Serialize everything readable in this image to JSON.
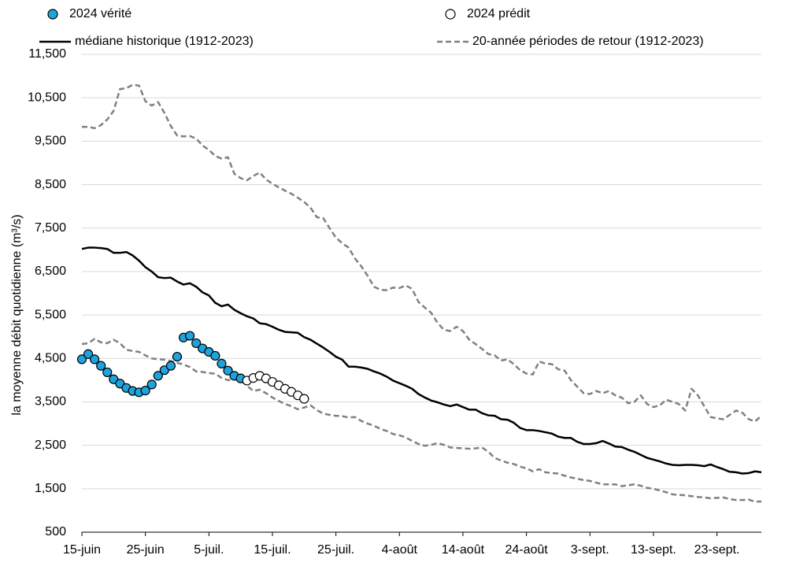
{
  "chart_data": {
    "type": "line",
    "y_label": "la moyenne débit quotidienne (m³/s)",
    "categories": [
      "15-juin",
      null,
      null,
      null,
      null,
      null,
      null,
      null,
      null,
      null,
      "25-juin",
      null,
      null,
      null,
      null,
      null,
      null,
      null,
      null,
      null,
      "5-juil.",
      null,
      null,
      null,
      null,
      null,
      null,
      null,
      null,
      null,
      "15-juil.",
      null,
      null,
      null,
      null,
      null,
      null,
      null,
      null,
      null,
      "25-juil.",
      null,
      null,
      null,
      null,
      null,
      null,
      null,
      null,
      null,
      "4-août",
      null,
      null,
      null,
      null,
      null,
      null,
      null,
      null,
      null,
      "14-août",
      null,
      null,
      null,
      null,
      null,
      null,
      null,
      null,
      null,
      "24-août",
      null,
      null,
      null,
      null,
      null,
      null,
      null,
      null,
      null,
      "3-sept.",
      null,
      null,
      null,
      null,
      null,
      null,
      null,
      null,
      null,
      "13-sept.",
      null,
      null,
      null,
      null,
      null,
      null,
      null,
      null,
      null,
      "23-sept.",
      null,
      null,
      null,
      null,
      null,
      null,
      null
    ],
    "ylim": [
      500,
      11500
    ],
    "yticks": [
      500,
      {
        "value": 1500,
        "label": "1,500"
      },
      {
        "value": 2500,
        "label": "2,500"
      },
      {
        "value": 3500,
        "label": "3,500"
      },
      {
        "value": 4500,
        "label": "4,500"
      },
      {
        "value": 5500,
        "label": "5,500"
      },
      {
        "value": 6500,
        "label": "6,500"
      },
      {
        "value": 7500,
        "label": "7,500"
      },
      {
        "value": 8500,
        "label": "8,500"
      },
      {
        "value": 9500,
        "label": "9,500"
      },
      {
        "value": 10500,
        "label": "10,500"
      },
      {
        "value": 11500,
        "label": "11,500"
      }
    ],
    "grid": true,
    "series": [
      {
        "name": "2024 vérité",
        "color": "#1fa3dc",
        "marker": true,
        "values": [
          4480,
          4600,
          4480,
          4330,
          4180,
          4020,
          3920,
          3820,
          3750,
          3720,
          3760,
          3900,
          4100,
          4230,
          4330,
          4540,
          4980,
          5020,
          4850,
          4730,
          4650,
          4560,
          4380,
          4220,
          4100,
          4040,
          null,
          null,
          null,
          null,
          null,
          null,
          null,
          null,
          null,
          null,
          null,
          null,
          null,
          null,
          null,
          null,
          null,
          null,
          null,
          null,
          null,
          null,
          null,
          null,
          null,
          null,
          null,
          null,
          null,
          null,
          null,
          null,
          null,
          null,
          null,
          null,
          null,
          null,
          null,
          null,
          null,
          null,
          null,
          null,
          null,
          null,
          null,
          null,
          null,
          null,
          null,
          null,
          null,
          null,
          null,
          null,
          null,
          null,
          null,
          null,
          null,
          null,
          null,
          null,
          null,
          null,
          null,
          null,
          null,
          null,
          null,
          null,
          null,
          null,
          null,
          null,
          null,
          null,
          null,
          null,
          null,
          null
        ]
      },
      {
        "name": "2024 prédit",
        "color": "#ffffff",
        "marker": true,
        "values": [
          null,
          null,
          null,
          null,
          null,
          null,
          null,
          null,
          null,
          null,
          null,
          null,
          null,
          null,
          null,
          null,
          null,
          null,
          null,
          null,
          null,
          null,
          null,
          null,
          null,
          null,
          3990,
          4050,
          4100,
          4040,
          3960,
          3880,
          3800,
          3730,
          3650,
          3570,
          null,
          null,
          null,
          null,
          null,
          null,
          null,
          null,
          null,
          null,
          null,
          null,
          null,
          null,
          null,
          null,
          null,
          null,
          null,
          null,
          null,
          null,
          null,
          null,
          null,
          null,
          null,
          null,
          null,
          null,
          null,
          null,
          null,
          null,
          null,
          null,
          null,
          null,
          null,
          null,
          null,
          null,
          null,
          null,
          null,
          null,
          null,
          null,
          null,
          null,
          null,
          null,
          null,
          null,
          null,
          null,
          null,
          null,
          null,
          null,
          null,
          null,
          null,
          null,
          null,
          null,
          null,
          null,
          null,
          null,
          null,
          null
        ]
      },
      {
        "name": "médiane historique (1912-2023)",
        "color": "#000000",
        "values": [
          7020,
          7050,
          7050,
          7040,
          7020,
          6930,
          6930,
          6950,
          6870,
          6750,
          6600,
          6500,
          6370,
          6350,
          6360,
          6270,
          6200,
          6230,
          6150,
          6020,
          5950,
          5780,
          5700,
          5740,
          5620,
          5540,
          5470,
          5420,
          5310,
          5290,
          5230,
          5160,
          5110,
          5100,
          5090,
          4990,
          4930,
          4840,
          4750,
          4650,
          4540,
          4470,
          4310,
          4310,
          4290,
          4260,
          4200,
          4150,
          4080,
          3990,
          3930,
          3870,
          3800,
          3680,
          3600,
          3530,
          3490,
          3440,
          3400,
          3440,
          3380,
          3320,
          3320,
          3240,
          3190,
          3180,
          3100,
          3090,
          3020,
          2900,
          2850,
          2850,
          2830,
          2800,
          2770,
          2700,
          2670,
          2670,
          2580,
          2530,
          2530,
          2550,
          2600,
          2540,
          2470,
          2460,
          2400,
          2350,
          2280,
          2210,
          2170,
          2130,
          2080,
          2050,
          2040,
          2050,
          2050,
          2040,
          2020,
          2060,
          2000,
          1950,
          1890,
          1880,
          1850,
          1860,
          1900,
          1880
        ]
      },
      {
        "name": "20-année périodes de retour (1912-2023)",
        "color": "#808080",
        "dashed": true,
        "values": [
          9830,
          9830,
          9800,
          9870,
          10000,
          10200,
          10700,
          10720,
          10800,
          10780,
          10420,
          10320,
          10400,
          10150,
          9850,
          9630,
          9610,
          9620,
          9560,
          9400,
          9300,
          9160,
          9100,
          9130,
          8750,
          8650,
          8600,
          8700,
          8780,
          8620,
          8520,
          8440,
          8360,
          8290,
          8200,
          8100,
          7970,
          7750,
          7730,
          7500,
          7280,
          7150,
          7050,
          6800,
          6620,
          6400,
          6150,
          6080,
          6070,
          6130,
          6120,
          6180,
          6100,
          5800,
          5670,
          5550,
          5320,
          5160,
          5130,
          5230,
          5130,
          4930,
          4830,
          4720,
          4600,
          4570,
          4450,
          4480,
          4370,
          4230,
          4150,
          4130,
          4430,
          4380,
          4370,
          4250,
          4220,
          4000,
          3850,
          3700,
          3680,
          3750,
          3700,
          3750,
          3650,
          3600,
          3470,
          3500,
          3650,
          3450,
          3380,
          3420,
          3550,
          3500,
          3450,
          3300,
          3800,
          3650,
          3400,
          3150,
          3120,
          3100,
          3200,
          3300,
          3250,
          3100,
          3050,
          3180
        ]
      },
      {
        "color": "#808080",
        "dashed": true,
        "values": [
          4830,
          4850,
          4950,
          4870,
          4850,
          4930,
          4850,
          4700,
          4670,
          4650,
          4570,
          4500,
          4480,
          4470,
          4440,
          4400,
          4360,
          4300,
          4200,
          4190,
          4160,
          4150,
          4050,
          4000,
          4020,
          4000,
          3870,
          3750,
          3780,
          3700,
          3600,
          3520,
          3450,
          3400,
          3330,
          3370,
          3420,
          3310,
          3230,
          3200,
          3180,
          3170,
          3140,
          3150,
          3060,
          3000,
          2950,
          2880,
          2830,
          2760,
          2730,
          2680,
          2600,
          2530,
          2490,
          2510,
          2550,
          2510,
          2450,
          2440,
          2430,
          2420,
          2430,
          2450,
          2350,
          2210,
          2150,
          2100,
          2070,
          2010,
          1970,
          1900,
          1950,
          1880,
          1860,
          1850,
          1800,
          1760,
          1730,
          1700,
          1680,
          1640,
          1600,
          1600,
          1600,
          1560,
          1580,
          1600,
          1570,
          1520,
          1500,
          1460,
          1420,
          1370,
          1360,
          1350,
          1330,
          1310,
          1300,
          1280,
          1290,
          1300,
          1260,
          1240,
          1240,
          1250,
          1200,
          1210
        ]
      }
    ]
  }
}
